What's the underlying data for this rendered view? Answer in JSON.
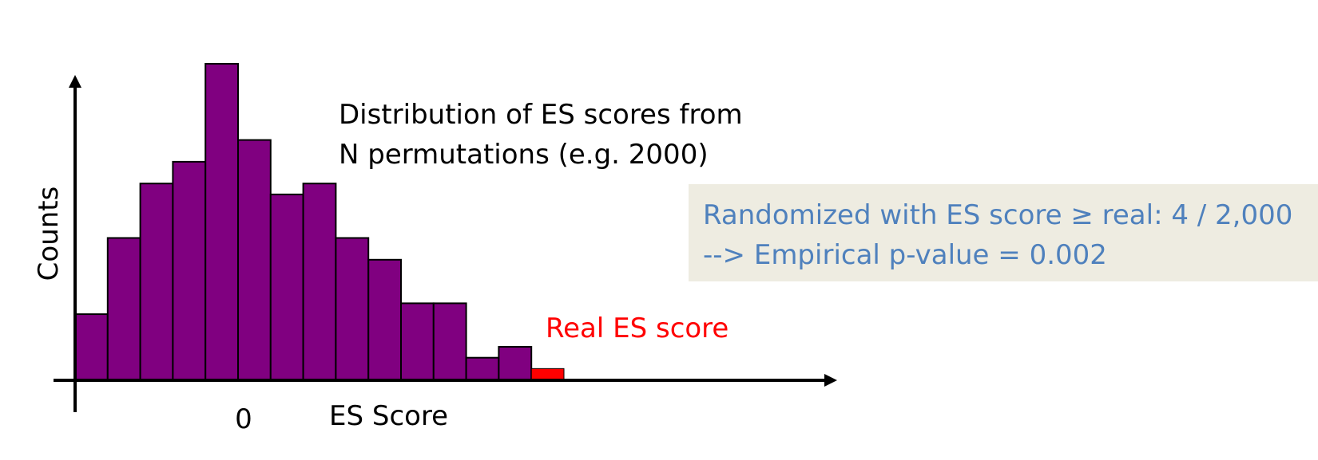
{
  "chart_data": {
    "type": "bar",
    "title_lines": [
      "Distribution of ES scores from",
      "N permutations (e.g. 2000)"
    ],
    "xlabel": "ES Score",
    "ylabel": "Counts",
    "x_tick_labels": [
      "0"
    ],
    "values": [
      6,
      13,
      18,
      20,
      29,
      22,
      17,
      18,
      13,
      11,
      7,
      7,
      2,
      3
    ],
    "real_value": 1,
    "ylim": [
      0,
      29
    ],
    "bar_color": "#800080",
    "real_color": "#ff0000",
    "real_label": "Real ES score"
  },
  "info_box": {
    "line1": "Randomized with ES score ≥ real: 4 / 2,000",
    "line2": "--> Empirical p-value = 0.002",
    "background": "#eeece1",
    "text_color": "#4f81bd"
  }
}
